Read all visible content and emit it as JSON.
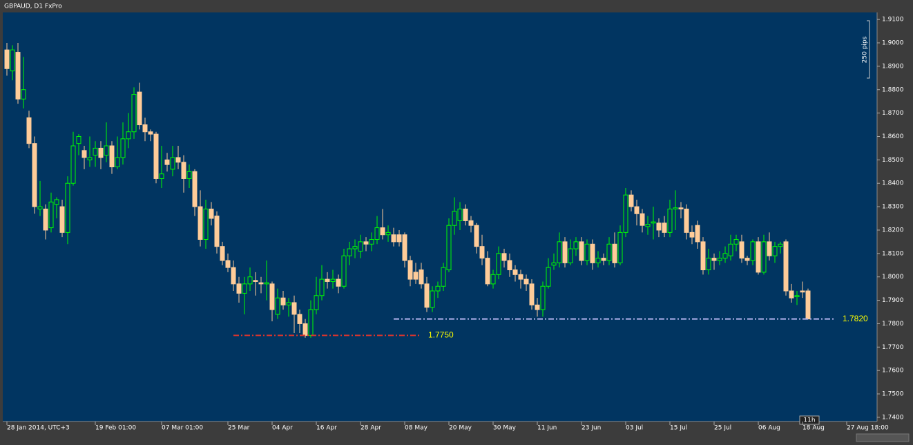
{
  "chart_data": {
    "type": "candlestick",
    "title": "GBPAUD, D1 FxPro",
    "scale_label": "250 pips",
    "cursor_label": "11h",
    "ylim": [
      1.7382,
      1.913
    ],
    "yticks": [
      {
        "value": 1.91,
        "label": "1.9100"
      },
      {
        "value": 1.9,
        "label": "1.9000"
      },
      {
        "value": 1.89,
        "label": "1.8900"
      },
      {
        "value": 1.88,
        "label": "1.8800"
      },
      {
        "value": 1.87,
        "label": "1.8700"
      },
      {
        "value": 1.86,
        "label": "1.8600"
      },
      {
        "value": 1.85,
        "label": "1.8500"
      },
      {
        "value": 1.84,
        "label": "1.8400"
      },
      {
        "value": 1.83,
        "label": "1.8300"
      },
      {
        "value": 1.82,
        "label": "1.8200"
      },
      {
        "value": 1.81,
        "label": "1.8100"
      },
      {
        "value": 1.8,
        "label": "1.8000"
      },
      {
        "value": 1.79,
        "label": "1.7900"
      },
      {
        "value": 1.78,
        "label": "1.7800"
      },
      {
        "value": 1.77,
        "label": "1.7700"
      },
      {
        "value": 1.76,
        "label": "1.7600"
      },
      {
        "value": 1.75,
        "label": "1.7500"
      },
      {
        "value": 1.74,
        "label": "1.7400"
      }
    ],
    "up_color": "#00ff00",
    "down_color": "#ffcc99",
    "categories": [
      "28 Jan 2014, UTC+3",
      null,
      null,
      null,
      null,
      null,
      null,
      null,
      null,
      null,
      null,
      null,
      null,
      null,
      null,
      null,
      "19 Feb 01:00",
      null,
      null,
      null,
      null,
      null,
      null,
      null,
      null,
      null,
      null,
      null,
      "07 Mar 01:00",
      null,
      null,
      null,
      null,
      null,
      null,
      null,
      null,
      null,
      null,
      null,
      "25 Mar",
      null,
      null,
      null,
      null,
      null,
      null,
      null,
      "04 Apr",
      null,
      null,
      null,
      null,
      null,
      null,
      null,
      "16 Apr",
      null,
      null,
      null,
      null,
      null,
      null,
      null,
      "28 Apr",
      null,
      null,
      null,
      null,
      null,
      null,
      null,
      "08 May",
      null,
      null,
      null,
      null,
      null,
      null,
      null,
      "20 May",
      null,
      null,
      null,
      null,
      null,
      null,
      null,
      "30 May",
      null,
      null,
      null,
      null,
      null,
      null,
      null,
      "11 Jun",
      null,
      null,
      null,
      null,
      null,
      null,
      null,
      "23 Jun",
      null,
      null,
      null,
      null,
      null,
      null,
      null,
      "03 Jul",
      null,
      null,
      null,
      null,
      null,
      null,
      null,
      "15 Jul",
      null,
      null,
      null,
      null,
      null,
      null,
      null,
      "25 Jul",
      null,
      null,
      null,
      null,
      null,
      null,
      null,
      "06 Aug",
      null,
      null,
      null,
      null,
      null,
      null,
      null,
      "18 Aug",
      null,
      null,
      null,
      null,
      null,
      null,
      null,
      "27 Aug 18:00"
    ],
    "candles": [
      [
        1.897,
        1.9,
        1.886,
        1.889
      ],
      [
        1.888,
        1.899,
        1.884,
        1.897
      ],
      [
        1.896,
        1.9,
        1.874,
        1.876
      ],
      [
        1.876,
        1.894,
        1.872,
        1.88
      ],
      [
        1.868,
        1.871,
        1.855,
        1.857
      ],
      [
        1.857,
        1.86,
        1.827,
        1.83
      ],
      [
        1.829,
        1.841,
        1.826,
        1.83
      ],
      [
        1.829,
        1.831,
        1.816,
        1.82
      ],
      [
        1.821,
        1.836,
        1.819,
        1.832
      ],
      [
        1.831,
        1.834,
        1.825,
        1.833
      ],
      [
        1.83,
        1.833,
        1.817,
        1.819
      ],
      [
        1.819,
        1.843,
        1.814,
        1.84
      ],
      [
        1.84,
        1.862,
        1.839,
        1.856
      ],
      [
        1.857,
        1.861,
        1.852,
        1.86
      ],
      [
        1.854,
        1.856,
        1.846,
        1.851
      ],
      [
        1.85,
        1.86,
        1.847,
        1.851
      ],
      [
        1.852,
        1.858,
        1.847,
        1.855
      ],
      [
        1.855,
        1.858,
        1.846,
        1.851
      ],
      [
        1.852,
        1.866,
        1.849,
        1.856
      ],
      [
        1.856,
        1.858,
        1.844,
        1.847
      ],
      [
        1.847,
        1.86,
        1.846,
        1.851
      ],
      [
        1.851,
        1.866,
        1.848,
        1.859
      ],
      [
        1.859,
        1.87,
        1.855,
        1.862
      ],
      [
        1.862,
        1.881,
        1.859,
        1.878
      ],
      [
        1.879,
        1.883,
        1.863,
        1.865
      ],
      [
        1.865,
        1.868,
        1.858,
        1.862
      ],
      [
        1.862,
        1.863,
        1.858,
        1.861
      ],
      [
        1.861,
        1.862,
        1.84,
        1.842
      ],
      [
        1.842,
        1.856,
        1.838,
        1.844
      ],
      [
        1.85,
        1.853,
        1.845,
        1.848
      ],
      [
        1.846,
        1.856,
        1.843,
        1.851
      ],
      [
        1.851,
        1.856,
        1.846,
        1.849
      ],
      [
        1.849,
        1.852,
        1.836,
        1.842
      ],
      [
        1.842,
        1.848,
        1.838,
        1.845
      ],
      [
        1.845,
        1.846,
        1.826,
        1.83
      ],
      [
        1.83,
        1.837,
        1.813,
        1.816
      ],
      [
        1.816,
        1.833,
        1.812,
        1.829
      ],
      [
        1.829,
        1.832,
        1.822,
        1.825
      ],
      [
        1.826,
        1.828,
        1.81,
        1.813
      ],
      [
        1.813,
        1.815,
        1.805,
        1.807
      ],
      [
        1.807,
        1.81,
        1.802,
        1.804
      ],
      [
        1.804,
        1.807,
        1.794,
        1.797
      ],
      [
        1.797,
        1.8,
        1.789,
        1.793
      ],
      [
        1.793,
        1.8,
        1.784,
        1.797
      ],
      [
        1.797,
        1.804,
        1.794,
        1.8
      ],
      [
        1.7985,
        1.802,
        1.792,
        1.798
      ],
      [
        1.7975,
        1.8,
        1.793,
        1.797
      ],
      [
        1.797,
        1.807,
        1.79,
        1.7975
      ],
      [
        1.797,
        1.798,
        1.781,
        1.786
      ],
      [
        1.784,
        1.795,
        1.782,
        1.791
      ],
      [
        1.791,
        1.794,
        1.786,
        1.788
      ],
      [
        1.788,
        1.791,
        1.783,
        1.789
      ],
      [
        1.789,
        1.792,
        1.776,
        1.784
      ],
      [
        1.784,
        1.786,
        1.776,
        1.78
      ],
      [
        1.78,
        1.782,
        1.774,
        1.775
      ],
      [
        1.775,
        1.79,
        1.774,
        1.786
      ],
      [
        1.786,
        1.8,
        1.784,
        1.792
      ],
      [
        1.792,
        1.805,
        1.79,
        1.799
      ],
      [
        1.799,
        1.802,
        1.795,
        1.798
      ],
      [
        1.798,
        1.803,
        1.795,
        1.799
      ],
      [
        1.799,
        1.801,
        1.793,
        1.796
      ],
      [
        1.796,
        1.812,
        1.795,
        1.809
      ],
      [
        1.809,
        1.815,
        1.805,
        1.812
      ],
      [
        1.812,
        1.816,
        1.808,
        1.813
      ],
      [
        1.811,
        1.818,
        1.808,
        1.815
      ],
      [
        1.815,
        1.817,
        1.811,
        1.814
      ],
      [
        1.814,
        1.819,
        1.811,
        1.816
      ],
      [
        1.816,
        1.826,
        1.814,
        1.821
      ],
      [
        1.821,
        1.829,
        1.816,
        1.818
      ],
      [
        1.818,
        1.822,
        1.815,
        1.819
      ],
      [
        1.818,
        1.821,
        1.813,
        1.815
      ],
      [
        1.818,
        1.82,
        1.813,
        1.815
      ],
      [
        1.818,
        1.819,
        1.804,
        1.807
      ],
      [
        1.807,
        1.809,
        1.796,
        1.799
      ],
      [
        1.802,
        1.806,
        1.797,
        1.799
      ],
      [
        1.803,
        1.806,
        1.795,
        1.797
      ],
      [
        1.797,
        1.8,
        1.785,
        1.787
      ],
      [
        1.787,
        1.796,
        1.785,
        1.794
      ],
      [
        1.794,
        1.798,
        1.791,
        1.796
      ],
      [
        1.796,
        1.806,
        1.794,
        1.804
      ],
      [
        1.803,
        1.825,
        1.802,
        1.822
      ],
      [
        1.822,
        1.834,
        1.818,
        1.828
      ],
      [
        1.824,
        1.832,
        1.82,
        1.829
      ],
      [
        1.829,
        1.831,
        1.822,
        1.824
      ],
      [
        1.824,
        1.826,
        1.819,
        1.822
      ],
      [
        1.822,
        1.823,
        1.81,
        1.813
      ],
      [
        1.813,
        1.818,
        1.805,
        1.808
      ],
      [
        1.808,
        1.811,
        1.796,
        1.797
      ],
      [
        1.797,
        1.803,
        1.795,
        1.801
      ],
      [
        1.801,
        1.813,
        1.799,
        1.81
      ],
      [
        1.81,
        1.812,
        1.804,
        1.807
      ],
      [
        1.807,
        1.81,
        1.8,
        1.803
      ],
      [
        1.803,
        1.805,
        1.798,
        1.801
      ],
      [
        1.801,
        1.803,
        1.795,
        1.799
      ],
      [
        1.799,
        1.801,
        1.794,
        1.797
      ],
      [
        1.797,
        1.799,
        1.786,
        1.788
      ],
      [
        1.788,
        1.791,
        1.783,
        1.786
      ],
      [
        1.786,
        1.798,
        1.783,
        1.796
      ],
      [
        1.796,
        1.808,
        1.795,
        1.804
      ],
      [
        1.805,
        1.81,
        1.803,
        1.806
      ],
      [
        1.806,
        1.819,
        1.804,
        1.815
      ],
      [
        1.815,
        1.817,
        1.804,
        1.806
      ],
      [
        1.806,
        1.816,
        1.805,
        1.812
      ],
      [
        1.812,
        1.817,
        1.809,
        1.815
      ],
      [
        1.815,
        1.817,
        1.805,
        1.807
      ],
      [
        1.807,
        1.816,
        1.805,
        1.814
      ],
      [
        1.814,
        1.816,
        1.803,
        1.806
      ],
      [
        1.806,
        1.811,
        1.804,
        1.808
      ],
      [
        1.808,
        1.81,
        1.805,
        1.807
      ],
      [
        1.807,
        1.817,
        1.805,
        1.814
      ],
      [
        1.814,
        1.819,
        1.804,
        1.806
      ],
      [
        1.806,
        1.822,
        1.805,
        1.819
      ],
      [
        1.819,
        1.838,
        1.817,
        1.835
      ],
      [
        1.835,
        1.837,
        1.828,
        1.83
      ],
      [
        1.83,
        1.833,
        1.822,
        1.827
      ],
      [
        1.827,
        1.829,
        1.819,
        1.822
      ],
      [
        1.8215,
        1.826,
        1.818,
        1.8225
      ],
      [
        1.823,
        1.83,
        1.816,
        1.8235
      ],
      [
        1.823,
        1.825,
        1.817,
        1.82
      ],
      [
        1.823,
        1.826,
        1.817,
        1.819
      ],
      [
        1.819,
        1.833,
        1.817,
        1.829
      ],
      [
        1.829,
        1.837,
        1.82,
        1.8295
      ],
      [
        1.8295,
        1.832,
        1.825,
        1.829
      ],
      [
        1.829,
        1.831,
        1.816,
        1.819
      ],
      [
        1.819,
        1.822,
        1.814,
        1.817
      ],
      [
        1.822,
        1.824,
        1.812,
        1.815
      ],
      [
        1.815,
        1.817,
        1.801,
        1.803
      ],
      [
        1.803,
        1.812,
        1.801,
        1.808
      ],
      [
        1.808,
        1.81,
        1.803,
        1.807
      ],
      [
        1.807,
        1.811,
        1.805,
        1.808
      ],
      [
        1.808,
        1.813,
        1.806,
        1.81
      ],
      [
        1.809,
        1.818,
        1.807,
        1.814
      ],
      [
        1.814,
        1.818,
        1.811,
        1.816
      ],
      [
        1.815,
        1.818,
        1.806,
        1.808
      ],
      [
        1.808,
        1.809,
        1.805,
        1.807
      ],
      [
        1.807,
        1.816,
        1.805,
        1.815
      ],
      [
        1.815,
        1.817,
        1.801,
        1.802
      ],
      [
        1.802,
        1.818,
        1.801,
        1.815
      ],
      [
        1.815,
        1.819,
        1.807,
        1.809
      ],
      [
        1.809,
        1.815,
        1.806,
        1.813
      ],
      [
        1.813,
        1.815,
        1.81,
        1.814
      ],
      [
        1.815,
        1.816,
        1.792,
        1.794
      ],
      [
        1.794,
        1.797,
        1.789,
        1.791
      ],
      [
        1.7915,
        1.794,
        1.788,
        1.792
      ],
      [
        1.794,
        1.798,
        1.791,
        1.7935
      ],
      [
        1.794,
        1.795,
        1.782,
        1.782
      ],
      null,
      null,
      null,
      null,
      null,
      null,
      null
    ],
    "levels": [
      {
        "value": 1.775,
        "label": "1.7750",
        "color": "#d8352d",
        "x": [
          41,
          75
        ]
      },
      {
        "value": 1.782,
        "label": "1.7820",
        "color": "#b4b4ee",
        "x": [
          70,
          150
        ]
      }
    ]
  }
}
